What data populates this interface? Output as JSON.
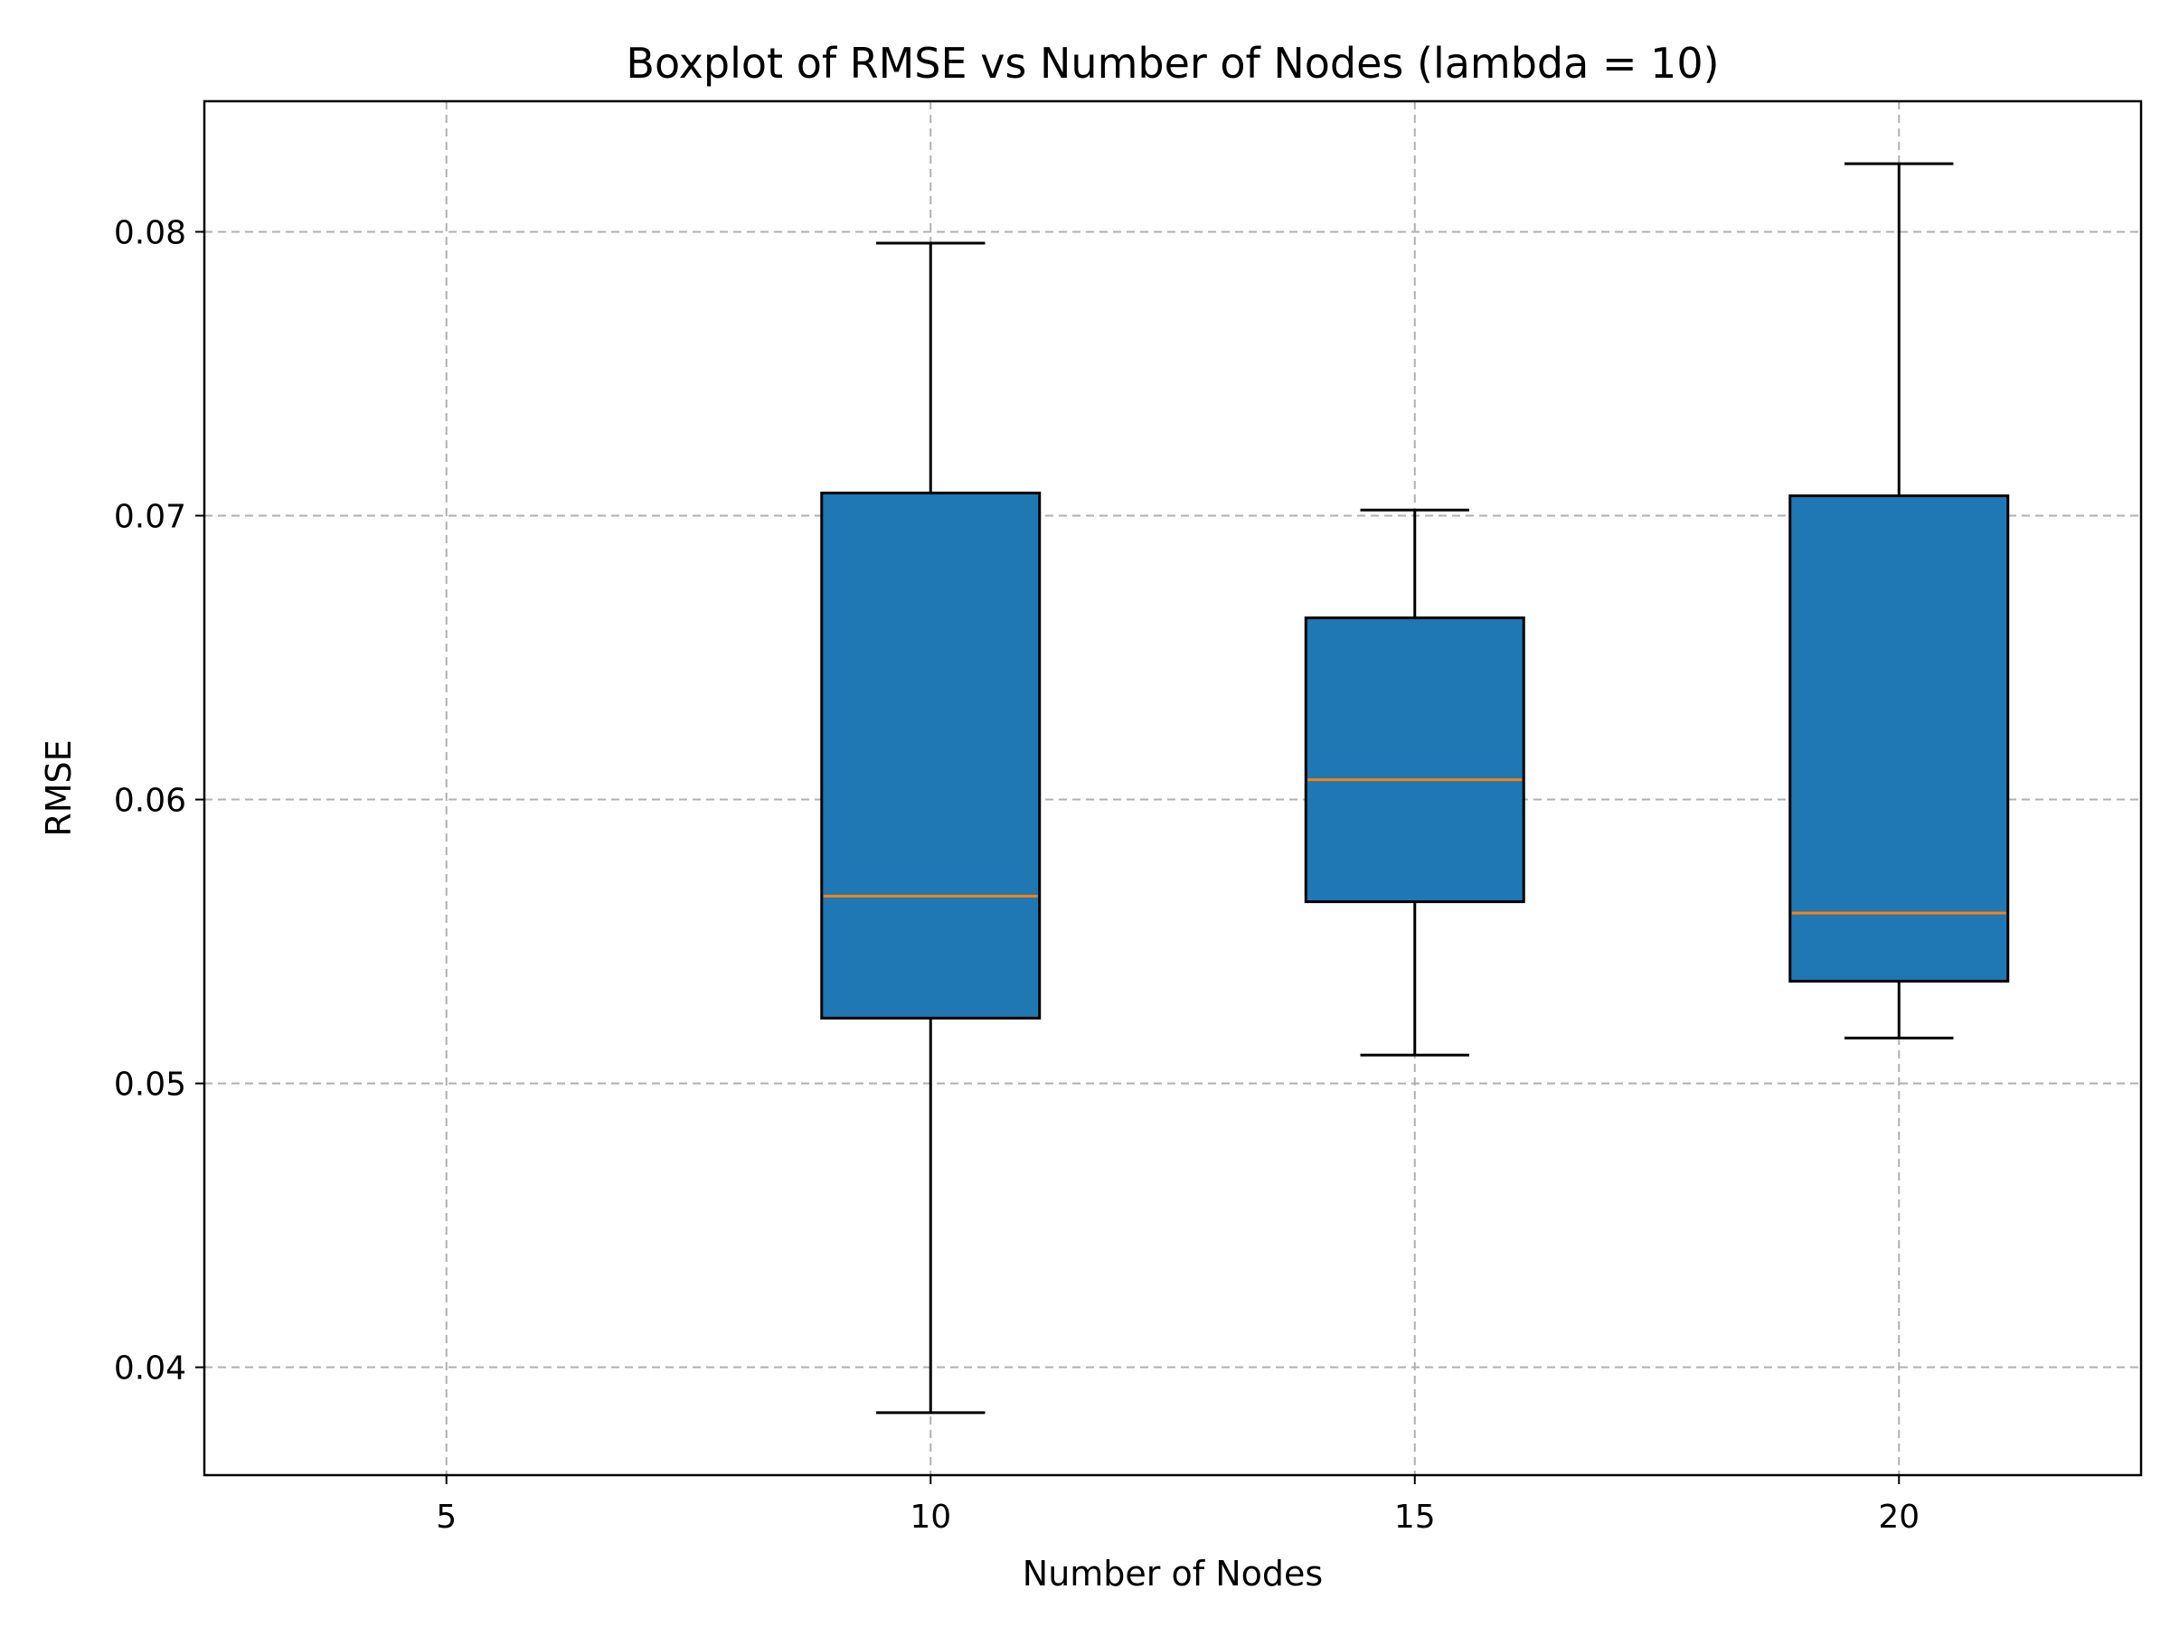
{
  "chart_data": {
    "type": "boxplot",
    "title": "Boxplot of RMSE vs Number of Nodes (lambda = 10)",
    "xlabel": "Number of Nodes",
    "ylabel": "RMSE",
    "xlim": [
      2.5,
      22.5
    ],
    "ylim": [
      0.0362,
      0.0846
    ],
    "x_ticks": [
      5,
      10,
      15,
      20
    ],
    "y_ticks": [
      0.04,
      0.05,
      0.06,
      0.07,
      0.08
    ],
    "y_tick_labels": [
      "0.04",
      "0.05",
      "0.06",
      "0.07",
      "0.08"
    ],
    "grid": true,
    "box_width": 2.25,
    "boxes": [
      {
        "x": 10,
        "whisker_low": 0.0384,
        "q1": 0.0523,
        "median": 0.0566,
        "q3": 0.0708,
        "whisker_high": 0.0796
      },
      {
        "x": 15,
        "whisker_low": 0.051,
        "q1": 0.0564,
        "median": 0.0607,
        "q3": 0.0664,
        "whisker_high": 0.0702
      },
      {
        "x": 20,
        "whisker_low": 0.0516,
        "q1": 0.0536,
        "median": 0.056,
        "q3": 0.0707,
        "whisker_high": 0.0824
      }
    ],
    "colors": {
      "box_fill": "#1f77b4",
      "median": "#ff7f0e",
      "grid": "#b0b0b0"
    }
  }
}
